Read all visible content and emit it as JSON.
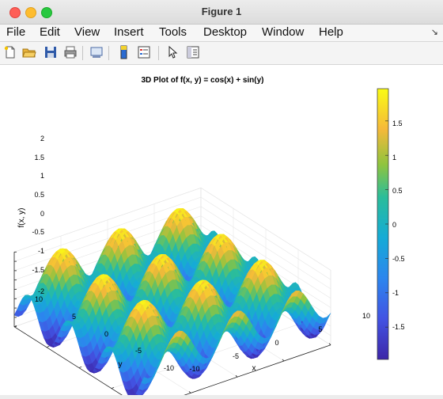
{
  "window": {
    "title": "Figure 1"
  },
  "menu": [
    "File",
    "Edit",
    "View",
    "Insert",
    "Tools",
    "Desktop",
    "Window",
    "Help"
  ],
  "menu_arrow": "↘",
  "toolbar": {
    "icons": [
      "new-figure-icon",
      "open-file-icon",
      "save-icon",
      "print-icon",
      "link-plot-icon",
      "colorbar-toggle-icon",
      "legend-toggle-icon",
      "pointer-icon",
      "property-editor-icon"
    ]
  },
  "plot": {
    "title": "3D Plot of f(x, y) = cos(x) + sin(y)",
    "xlabel": "x",
    "ylabel": "y",
    "zlabel": "f(x, y)",
    "x_ticks": [
      "-10",
      "-5",
      "0",
      "5",
      "10"
    ],
    "y_ticks": [
      "10",
      "5",
      "0",
      "-5",
      "-10"
    ],
    "z_ticks": [
      "2",
      "1.5",
      "1",
      "0.5",
      "0",
      "-0.5",
      "-1",
      "-1.5",
      "-2"
    ],
    "colorbar_ticks": [
      "1.5",
      "1",
      "0.5",
      "0",
      "-0.5",
      "-1",
      "-1.5"
    ],
    "colormap": "parula",
    "colors": {
      "low": "#3d26a8",
      "mid": "#1fb4b0",
      "high": "#f9fb15"
    }
  },
  "chart_data": {
    "type": "surface",
    "function": "cos(x) + sin(y)",
    "title": "3D Plot of f(x, y) = cos(x) + sin(y)",
    "xlabel": "x",
    "ylabel": "y",
    "zlabel": "f(x, y)",
    "xlim": [
      -10,
      10
    ],
    "ylim": [
      -10,
      10
    ],
    "zlim": [
      -2,
      2
    ],
    "clim": [
      -2,
      2
    ],
    "grid": true,
    "colorbar": "right"
  }
}
